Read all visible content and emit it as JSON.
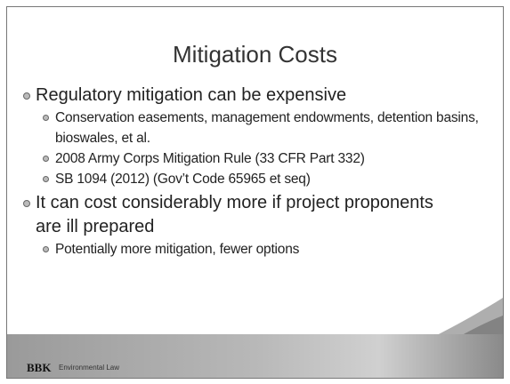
{
  "header": {
    "title": "Mitigation Costs"
  },
  "bullets": [
    {
      "text": "Regulatory mitigation can be expensive",
      "children": [
        {
          "text": "Conservation easements, management endowments, detention basins, bioswales, et al."
        },
        {
          "text": "2008 Army Corps Mitigation Rule (33 CFR Part 332)"
        },
        {
          "text": "SB 1094 (2012) (Gov’t Code 65965 et seq)"
        }
      ]
    },
    {
      "text": "It can cost considerably more if project proponents are ill prepared",
      "children": [
        {
          "text": "Potentially more mitigation, fewer options"
        }
      ]
    }
  ],
  "footer": {
    "logo": "BBK",
    "tagline": "Environmental Law"
  }
}
